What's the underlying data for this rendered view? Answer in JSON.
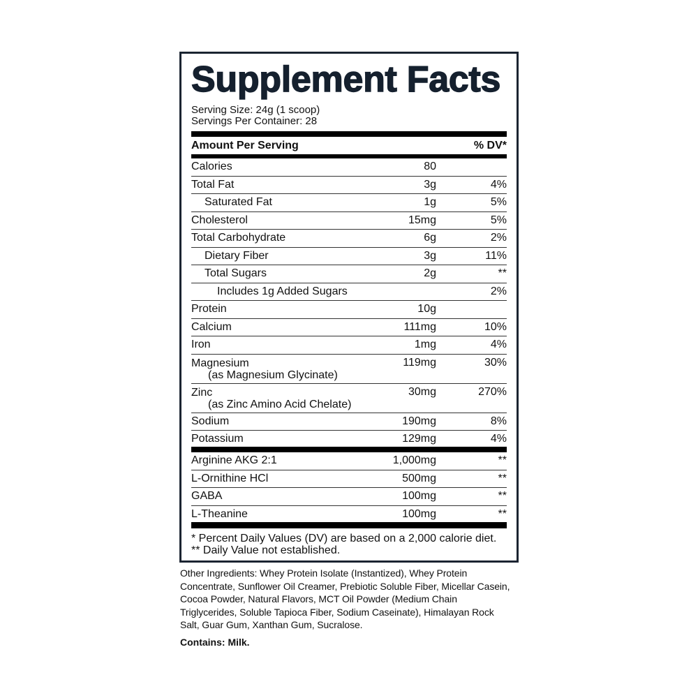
{
  "label": {
    "title": "Supplement Facts",
    "serving_size": "Serving Size: 24g (1 scoop)",
    "servings_per_container": "Servings Per Container: 28",
    "header_amount": "Amount Per Serving",
    "header_dv": "% DV*",
    "nutrients": [
      {
        "name": "Calories",
        "amount": "80",
        "dv": ""
      },
      {
        "name": "Total Fat",
        "amount": "3g",
        "dv": "4%"
      },
      {
        "name": "Saturated Fat",
        "amount": "1g",
        "dv": "5%",
        "indent": 1
      },
      {
        "name": "Cholesterol",
        "amount": "15mg",
        "dv": "5%"
      },
      {
        "name": "Total Carbohydrate",
        "amount": "6g",
        "dv": "2%"
      },
      {
        "name": "Dietary Fiber",
        "amount": "3g",
        "dv": "11%",
        "indent": 1
      },
      {
        "name": "Total Sugars",
        "amount": "2g",
        "dv": "**",
        "indent": 1
      },
      {
        "name": "Includes 1g Added Sugars",
        "amount": "",
        "dv": "2%",
        "indent": 2
      },
      {
        "name": "Protein",
        "amount": "10g",
        "dv": ""
      },
      {
        "name": "Calcium",
        "amount": "111mg",
        "dv": "10%"
      },
      {
        "name": "Iron",
        "amount": "1mg",
        "dv": "4%"
      },
      {
        "name": "Magnesium",
        "sub": "(as Magnesium Glycinate)",
        "amount": "119mg",
        "dv": "30%"
      },
      {
        "name": "Zinc",
        "sub": "(as Zinc Amino Acid Chelate)",
        "amount": "30mg",
        "dv": "270%"
      },
      {
        "name": "Sodium",
        "amount": "190mg",
        "dv": "8%"
      },
      {
        "name": "Potassium",
        "amount": "129mg",
        "dv": "4%"
      }
    ],
    "other_actives": [
      {
        "name": "Arginine AKG 2:1",
        "amount": "1,000mg",
        "dv": "**"
      },
      {
        "name": "L-Ornithine HCl",
        "amount": "500mg",
        "dv": "**"
      },
      {
        "name": "GABA",
        "amount": "100mg",
        "dv": "**"
      },
      {
        "name": "L-Theanine",
        "amount": "100mg",
        "dv": "**"
      }
    ],
    "footnote_1": "* Percent Daily Values (DV) are based on a 2,000 calorie diet.",
    "footnote_2": "** Daily Value not established."
  },
  "ingredients": "Other Ingredients: Whey Protein Isolate (Instantized), Whey Protein Concentrate, Sunflower Oil Creamer, Prebiotic Soluble Fiber, Micellar Casein, Cocoa Powder, Natural Flavors, MCT Oil Powder (Medium Chain Triglycerides, Soluble Tapioca Fiber, Sodium Caseinate), Himalayan Rock Salt, Guar Gum, Xanthan Gum, Sucralose.",
  "contains": "Contains: Milk.",
  "colors": {
    "border": "#1b2431",
    "title": "#15202e"
  }
}
